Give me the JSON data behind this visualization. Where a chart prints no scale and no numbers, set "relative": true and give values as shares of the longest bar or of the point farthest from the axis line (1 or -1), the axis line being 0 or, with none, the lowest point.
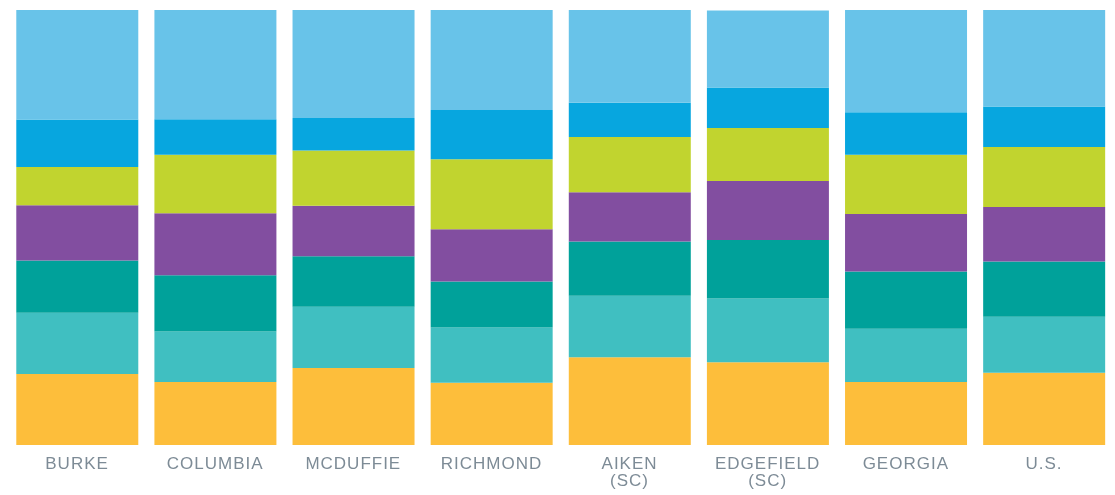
{
  "chart_data": {
    "type": "bar",
    "stacked": true,
    "relative": true,
    "categories": [
      "BURKE",
      "COLUMBIA",
      "MCDUFFIE",
      "RICHMOND",
      "AIKEN (SC)",
      "EDGEFIELD (SC)",
      "GEORGIA",
      "U.S."
    ],
    "series": [
      {
        "color": "#fdbe3b",
        "values": [
          0.163,
          0.145,
          0.177,
          0.143,
          0.202,
          0.19,
          0.145,
          0.166
        ]
      },
      {
        "color": "#40bfc1",
        "values": [
          0.141,
          0.116,
          0.141,
          0.127,
          0.141,
          0.147,
          0.122,
          0.129
        ]
      },
      {
        "color": "#00a19a",
        "values": [
          0.12,
          0.129,
          0.116,
          0.106,
          0.125,
          0.134,
          0.132,
          0.127
        ]
      },
      {
        "color": "#824ea0",
        "values": [
          0.127,
          0.143,
          0.116,
          0.12,
          0.113,
          0.136,
          0.132,
          0.125
        ]
      },
      {
        "color": "#c1d42f",
        "values": [
          0.088,
          0.134,
          0.127,
          0.161,
          0.127,
          0.122,
          0.136,
          0.138
        ]
      },
      {
        "color": "#07a6df",
        "values": [
          0.109,
          0.082,
          0.075,
          0.113,
          0.079,
          0.093,
          0.098,
          0.093
        ]
      },
      {
        "color": "#68c3e9",
        "values": [
          0.252,
          0.251,
          0.248,
          0.23,
          0.213,
          0.177,
          0.235,
          0.222
        ]
      }
    ],
    "grid": false,
    "legend": false
  }
}
